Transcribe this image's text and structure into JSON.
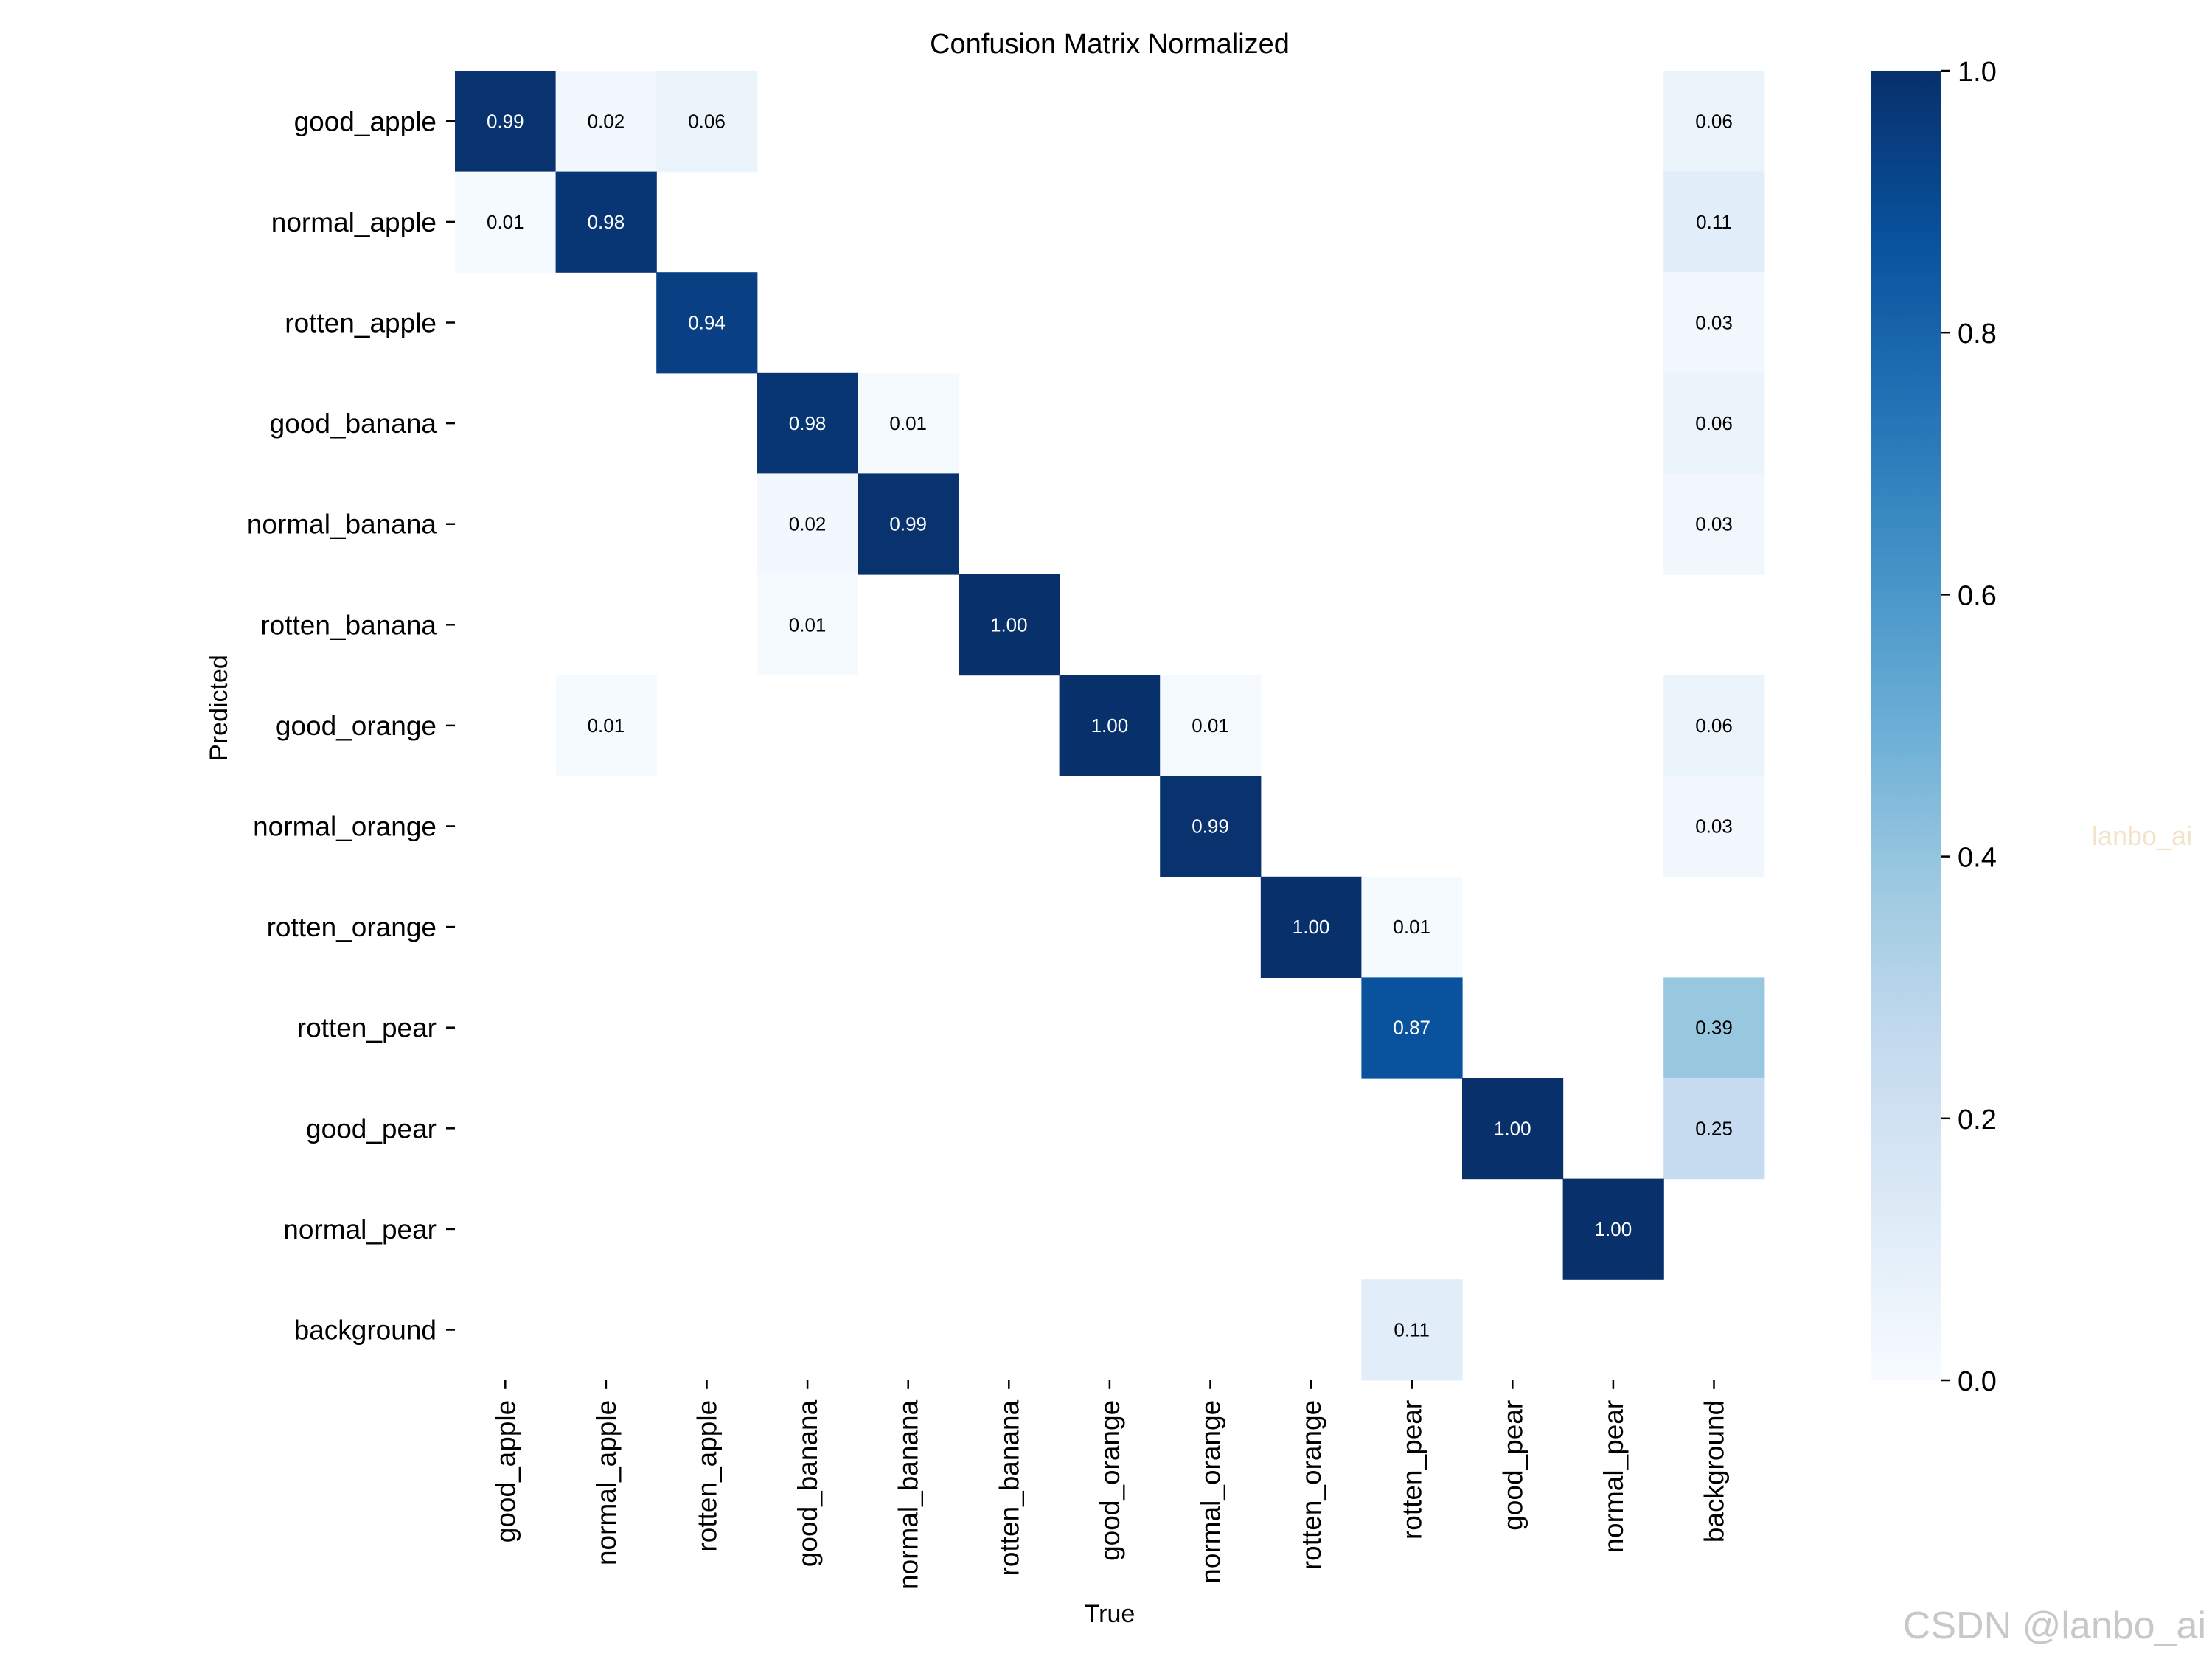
{
  "chart_data": {
    "type": "heatmap",
    "title": "Confusion Matrix Normalized",
    "xlabel": "True",
    "ylabel": "Predicted",
    "x_categories": [
      "good_apple",
      "normal_apple",
      "rotten_apple",
      "good_banana",
      "normal_banana",
      "rotten_banana",
      "good_orange",
      "normal_orange",
      "rotten_orange",
      "rotten_pear",
      "good_pear",
      "normal_pear",
      "background"
    ],
    "y_categories": [
      "good_apple",
      "normal_apple",
      "rotten_apple",
      "good_banana",
      "normal_banana",
      "rotten_banana",
      "good_orange",
      "normal_orange",
      "rotten_orange",
      "rotten_pear",
      "good_pear",
      "normal_pear",
      "background"
    ],
    "values": [
      [
        0.99,
        0.02,
        0.06,
        null,
        null,
        null,
        null,
        null,
        null,
        null,
        null,
        null,
        0.06
      ],
      [
        0.01,
        0.98,
        null,
        null,
        null,
        null,
        null,
        null,
        null,
        null,
        null,
        null,
        0.11
      ],
      [
        null,
        null,
        0.94,
        null,
        null,
        null,
        null,
        null,
        null,
        null,
        null,
        null,
        0.03
      ],
      [
        null,
        null,
        null,
        0.98,
        0.01,
        null,
        null,
        null,
        null,
        null,
        null,
        null,
        0.06
      ],
      [
        null,
        null,
        null,
        0.02,
        0.99,
        null,
        null,
        null,
        null,
        null,
        null,
        null,
        0.03
      ],
      [
        null,
        null,
        null,
        0.01,
        null,
        1.0,
        null,
        null,
        null,
        null,
        null,
        null,
        null
      ],
      [
        null,
        0.01,
        null,
        null,
        null,
        null,
        1.0,
        0.01,
        null,
        null,
        null,
        null,
        0.06
      ],
      [
        null,
        null,
        null,
        null,
        null,
        null,
        null,
        0.99,
        null,
        null,
        null,
        null,
        0.03
      ],
      [
        null,
        null,
        null,
        null,
        null,
        null,
        null,
        null,
        1.0,
        0.01,
        null,
        null,
        null
      ],
      [
        null,
        null,
        null,
        null,
        null,
        null,
        null,
        null,
        null,
        0.87,
        null,
        null,
        0.39
      ],
      [
        null,
        null,
        null,
        null,
        null,
        null,
        null,
        null,
        null,
        null,
        1.0,
        null,
        0.25
      ],
      [
        null,
        null,
        null,
        null,
        null,
        null,
        null,
        null,
        null,
        null,
        null,
        1.0,
        null
      ],
      [
        null,
        null,
        null,
        null,
        null,
        null,
        null,
        null,
        null,
        0.11,
        null,
        null,
        null
      ]
    ],
    "value_format": "0.00",
    "colormap": "Blues",
    "colorbar": {
      "range": [
        0.0,
        1.0
      ],
      "ticks": [
        "0.0",
        "0.2",
        "0.4",
        "0.6",
        "0.8",
        "1.0"
      ]
    },
    "grid": false,
    "watermarks": [
      "lanbo_ai",
      "CSDN @lanbo_ai"
    ]
  },
  "colors": {
    "blues": [
      "#f7fbff",
      "#deebf7",
      "#c6dbef",
      "#9ecae1",
      "#6baed6",
      "#4292c6",
      "#2171b5",
      "#08519c",
      "#08306b"
    ],
    "text_dark": "#000000",
    "text_light": "#ffffff",
    "watermark_center": "#f3e3c8",
    "watermark_corner": "#c8c8c8"
  }
}
